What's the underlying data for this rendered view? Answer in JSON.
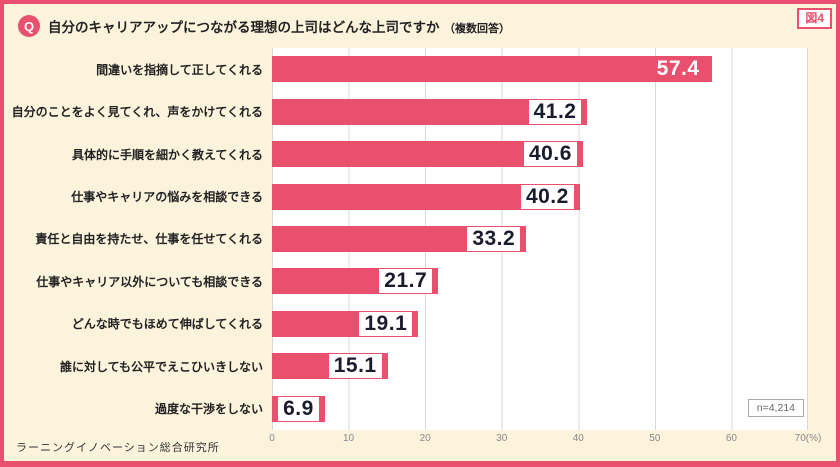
{
  "frame": {
    "fig_label": "図4"
  },
  "header": {
    "q_badge": "Q",
    "title": "自分のキャリアアップにつながる理想の上司はどんな上司ですか",
    "title_suffix": "（複数回答）"
  },
  "chart_data": {
    "type": "bar",
    "orientation": "horizontal",
    "title": "自分のキャリアアップにつながる理想の上司はどんな上司ですか（複数回答）",
    "categories": [
      "間違いを指摘して正してくれる",
      "自分のことをよく見てくれ、声をかけてくれる",
      "具体的に手順を細かく教えてくれる",
      "仕事やキャリアの悩みを相談できる",
      "責任と自由を持たせ、仕事を任せてくれる",
      "仕事やキャリア以外についても相談できる",
      "どんな時でもほめて伸ばしてくれる",
      "誰に対しても公平でえこひいきしない",
      "過度な干渉をしない"
    ],
    "values": [
      57.4,
      41.2,
      40.6,
      40.2,
      33.2,
      21.7,
      19.1,
      15.1,
      6.9
    ],
    "xlabel": "(%)",
    "xlim": [
      0,
      70
    ],
    "ticks": [
      "0",
      "10",
      "20",
      "30",
      "40",
      "50",
      "60",
      "70(%)"
    ],
    "grid": true,
    "legend": null,
    "bar_color": "#e8506e",
    "n_label": "n=4,214"
  },
  "footer": {
    "source": "ラーニングイノベーション総合研究所"
  }
}
